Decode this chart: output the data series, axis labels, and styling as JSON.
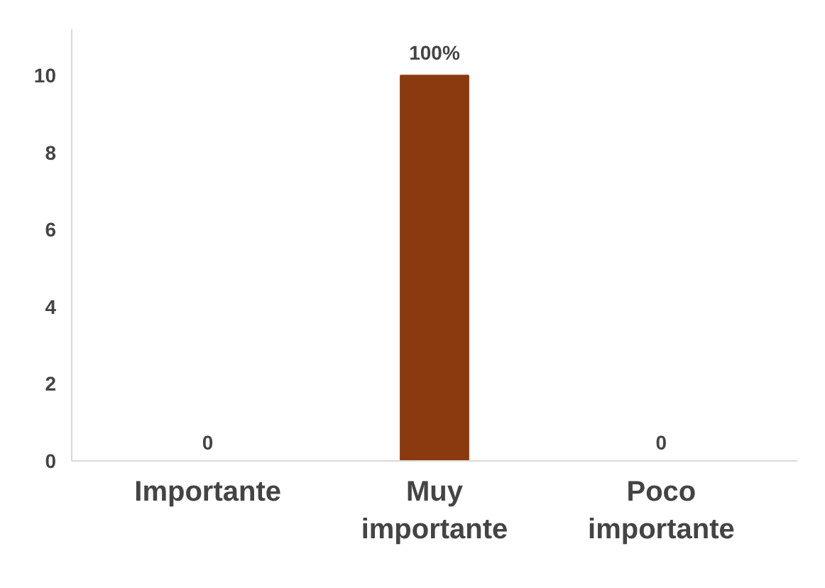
{
  "chart_data": {
    "type": "bar",
    "categories": [
      "Importante",
      "Muy importante",
      "Poco importante"
    ],
    "values": [
      0,
      10,
      0
    ],
    "value_labels": [
      "0",
      null,
      "0"
    ],
    "annotations": [
      {
        "text": "100%",
        "x": "Muy importante",
        "y": 10
      }
    ],
    "color": "#8b3a0f",
    "ylim": [
      0,
      11.2
    ],
    "yticks": [
      0,
      2,
      4,
      6,
      8,
      10
    ],
    "grid": false
  }
}
